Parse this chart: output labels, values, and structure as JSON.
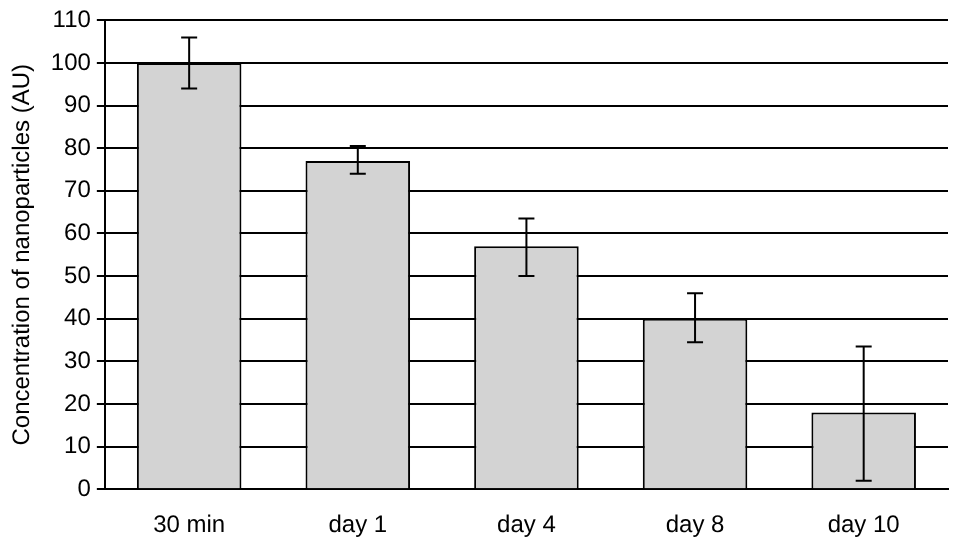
{
  "chart_data": {
    "type": "bar",
    "ylabel": "Concentration of nanoparticles (AU)",
    "categories": [
      "30 min",
      "day 1",
      "day 4",
      "day 8",
      "day 10"
    ],
    "values": [
      100,
      77,
      57,
      40,
      18
    ],
    "errors": [
      [
        94,
        106
      ],
      [
        74,
        80.5
      ],
      [
        50,
        63.5
      ],
      [
        34.5,
        46
      ],
      [
        2,
        33.5
      ]
    ],
    "color": "#d3d3d3",
    "ylim": [
      0,
      110
    ],
    "yticks": [
      0,
      10,
      20,
      30,
      40,
      50,
      60,
      70,
      80,
      90,
      100,
      110
    ],
    "grid": "y"
  }
}
